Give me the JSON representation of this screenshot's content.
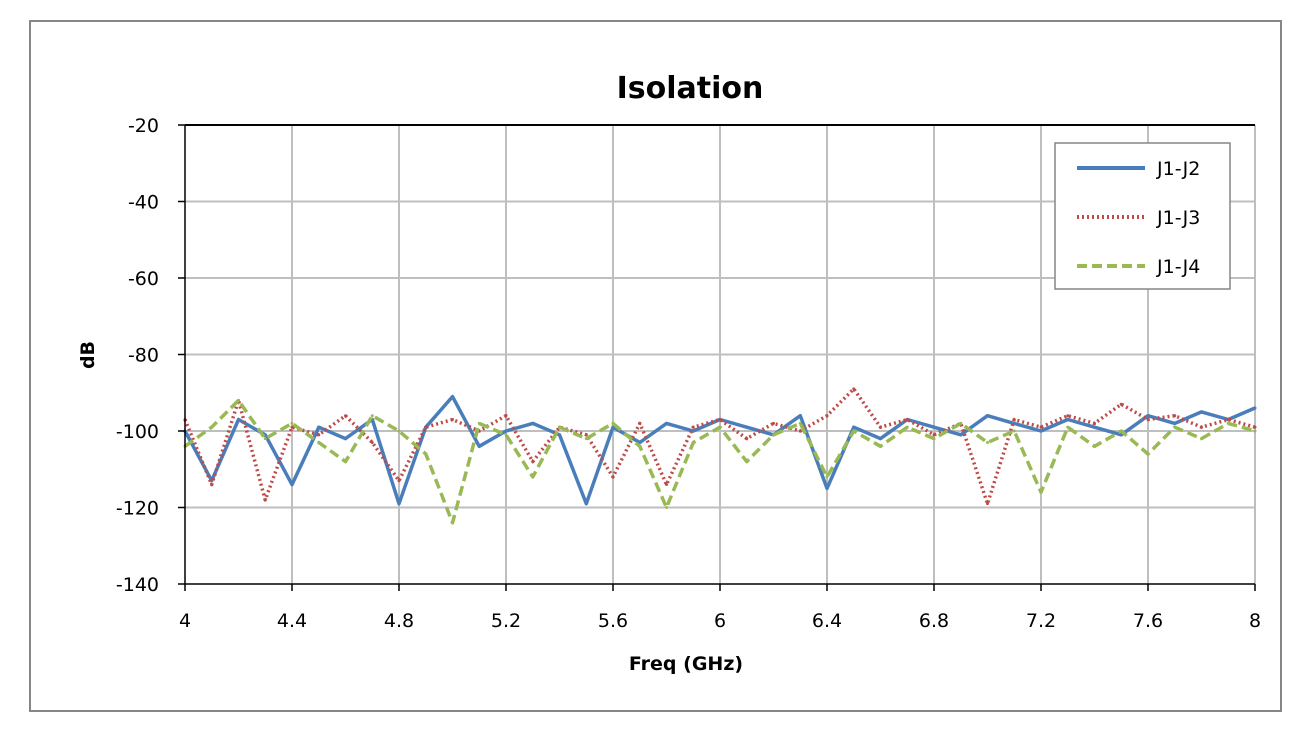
{
  "chart_data": {
    "type": "line",
    "title": "Isolation",
    "xlabel": "Freq (GHz)",
    "ylabel": "dB",
    "xlim": [
      4,
      8
    ],
    "ylim": [
      -140,
      -20
    ],
    "x_ticks": [
      4,
      4.4,
      4.8,
      5.2,
      5.6,
      6,
      6.4,
      6.8,
      7.2,
      7.6,
      8
    ],
    "x_tick_labels": [
      "4",
      "4.4",
      "4.8",
      "5.2",
      "5.6",
      "6",
      "6.4",
      "6.8",
      "7.2",
      "7.6",
      "8"
    ],
    "y_ticks": [
      -20,
      -40,
      -60,
      -80,
      -100,
      -120,
      -140
    ],
    "y_tick_labels": [
      "-20",
      "-40",
      "-60",
      "-80",
      "-100",
      "-120",
      "-140"
    ],
    "grid": "vertical",
    "legend_position": "top-right",
    "x": [
      4.0,
      4.1,
      4.2,
      4.3,
      4.4,
      4.5,
      4.6,
      4.7,
      4.8,
      4.9,
      5.0,
      5.1,
      5.2,
      5.3,
      5.4,
      5.5,
      5.6,
      5.7,
      5.8,
      5.9,
      6.0,
      6.1,
      6.2,
      6.3,
      6.4,
      6.5,
      6.6,
      6.7,
      6.8,
      6.9,
      7.0,
      7.1,
      7.2,
      7.3,
      7.4,
      7.5,
      7.6,
      7.7,
      7.8,
      7.9,
      8.0
    ],
    "series": [
      {
        "name": "J1-J2",
        "color": "#4a7ebb",
        "dash": "solid",
        "values": [
          -100,
          -113,
          -97,
          -101,
          -114,
          -99,
          -102,
          -97,
          -119,
          -99,
          -91,
          -104,
          -100,
          -98,
          -101,
          -119,
          -99,
          -103,
          -98,
          -100,
          -97,
          -99,
          -101,
          -96,
          -115,
          -99,
          -102,
          -97,
          -99,
          -101,
          -96,
          -98,
          -100,
          -97,
          -99,
          -101,
          -96,
          -98,
          -95,
          -97,
          -94
        ]
      },
      {
        "name": "J1-J3",
        "color": "#be4b48",
        "dash": "dotted",
        "values": [
          -97,
          -114,
          -92,
          -118,
          -99,
          -101,
          -96,
          -103,
          -113,
          -99,
          -97,
          -100,
          -96,
          -108,
          -99,
          -101,
          -112,
          -98,
          -114,
          -99,
          -97,
          -102,
          -98,
          -100,
          -96,
          -89,
          -99,
          -97,
          -101,
          -98,
          -119,
          -97,
          -99,
          -96,
          -98,
          -93,
          -97,
          -96,
          -99,
          -97,
          -99
        ]
      },
      {
        "name": "J1-J4",
        "color": "#98b954",
        "dash": "dashed",
        "values": [
          -104,
          -99,
          -92,
          -102,
          -98,
          -103,
          -108,
          -96,
          -100,
          -106,
          -124,
          -98,
          -101,
          -112,
          -99,
          -102,
          -98,
          -104,
          -120,
          -103,
          -99,
          -108,
          -101,
          -98,
          -112,
          -100,
          -104,
          -99,
          -102,
          -98,
          -103,
          -100,
          -116,
          -99,
          -104,
          -100,
          -106,
          -99,
          -102,
          -98,
          -100
        ]
      }
    ]
  }
}
